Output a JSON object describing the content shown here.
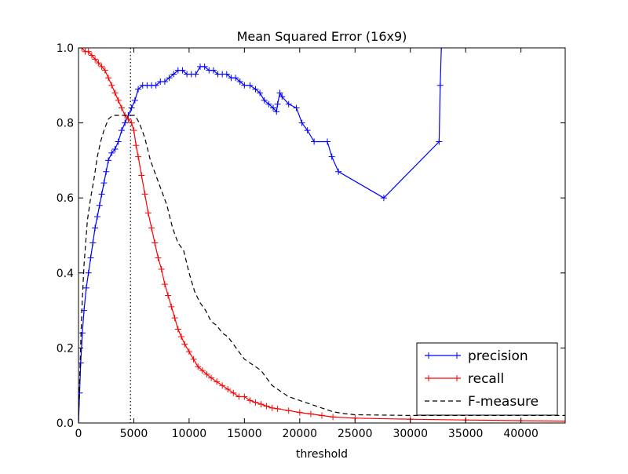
{
  "chart_data": {
    "type": "line",
    "title": "Mean Squared Error (16x9)",
    "xlabel": "threshold",
    "ylabel": "",
    "xlim": [
      0,
      44000
    ],
    "ylim": [
      0.0,
      1.0
    ],
    "xticks": [
      0,
      5000,
      10000,
      15000,
      20000,
      25000,
      30000,
      35000,
      40000
    ],
    "yticks": [
      0.0,
      0.2,
      0.4,
      0.6,
      0.8,
      1.0
    ],
    "xtick_labels": [
      "0",
      "5000",
      "10000",
      "15000",
      "20000",
      "25000",
      "30000",
      "35000",
      "40000"
    ],
    "ytick_labels": [
      "0.0",
      "0.2",
      "0.4",
      "0.6",
      "0.8",
      "1.0"
    ],
    "grid": false,
    "legend_position": "lower-right",
    "threshold_line_x": 4700,
    "series": [
      {
        "name": "precision",
        "color": "#0000ff",
        "style": "solid",
        "marker": "+",
        "x": [
          0,
          100,
          200,
          350,
          500,
          700,
          900,
          1100,
          1300,
          1500,
          1700,
          1900,
          2100,
          2300,
          2500,
          2700,
          3000,
          3300,
          3600,
          3900,
          4200,
          4500,
          4800,
          5100,
          5400,
          5800,
          6200,
          6600,
          7000,
          7400,
          7800,
          8200,
          8600,
          9000,
          9400,
          9800,
          10200,
          10600,
          11000,
          11400,
          11800,
          12200,
          12600,
          13000,
          13400,
          13800,
          14200,
          14600,
          15000,
          15500,
          16000,
          16400,
          16800,
          17200,
          17600,
          17900,
          18000,
          18200,
          18400,
          19000,
          19700,
          20200,
          20700,
          21300,
          22500,
          22900,
          23500,
          27600,
          32600,
          32700,
          32800
        ],
        "values": [
          0.0,
          0.08,
          0.16,
          0.24,
          0.3,
          0.36,
          0.4,
          0.44,
          0.48,
          0.52,
          0.55,
          0.58,
          0.61,
          0.64,
          0.67,
          0.7,
          0.72,
          0.73,
          0.75,
          0.78,
          0.8,
          0.82,
          0.84,
          0.86,
          0.89,
          0.9,
          0.9,
          0.9,
          0.9,
          0.91,
          0.91,
          0.92,
          0.93,
          0.94,
          0.94,
          0.93,
          0.93,
          0.93,
          0.95,
          0.95,
          0.94,
          0.94,
          0.93,
          0.93,
          0.93,
          0.92,
          0.92,
          0.91,
          0.9,
          0.9,
          0.89,
          0.88,
          0.86,
          0.85,
          0.84,
          0.83,
          0.85,
          0.88,
          0.87,
          0.85,
          0.84,
          0.8,
          0.78,
          0.75,
          0.75,
          0.71,
          0.67,
          0.6,
          0.75,
          0.9,
          1.0
        ]
      },
      {
        "name": "recall",
        "color": "#ff0000",
        "style": "solid",
        "marker": "+",
        "x": [
          0,
          300,
          600,
          900,
          1200,
          1500,
          1800,
          2100,
          2400,
          2700,
          3000,
          3300,
          3600,
          3900,
          4200,
          4500,
          4800,
          5000,
          5200,
          5400,
          5700,
          6000,
          6300,
          6600,
          6900,
          7200,
          7500,
          7800,
          8100,
          8400,
          8700,
          9000,
          9300,
          9600,
          10000,
          10400,
          10800,
          11200,
          11600,
          12000,
          12500,
          13000,
          13500,
          14000,
          14500,
          15000,
          15500,
          16000,
          16500,
          17000,
          17500,
          18000,
          19000,
          20000,
          21000,
          22000,
          23000,
          25000,
          30000,
          35000,
          40000,
          44000
        ],
        "values": [
          1.0,
          1.0,
          0.99,
          0.99,
          0.98,
          0.97,
          0.96,
          0.95,
          0.94,
          0.92,
          0.9,
          0.88,
          0.86,
          0.84,
          0.82,
          0.81,
          0.8,
          0.78,
          0.74,
          0.71,
          0.66,
          0.61,
          0.56,
          0.52,
          0.48,
          0.44,
          0.41,
          0.37,
          0.34,
          0.31,
          0.28,
          0.25,
          0.23,
          0.21,
          0.19,
          0.17,
          0.15,
          0.14,
          0.13,
          0.12,
          0.11,
          0.1,
          0.09,
          0.08,
          0.07,
          0.07,
          0.06,
          0.055,
          0.05,
          0.045,
          0.04,
          0.038,
          0.033,
          0.028,
          0.024,
          0.02,
          0.016,
          0.013,
          0.01,
          0.008,
          0.006,
          0.005
        ]
      },
      {
        "name": "F-measure",
        "color": "#000000",
        "style": "dashed",
        "marker": "",
        "x": [
          0,
          150,
          300,
          500,
          800,
          1100,
          1400,
          1700,
          2000,
          2300,
          2700,
          3100,
          3500,
          3900,
          4300,
          4700,
          5100,
          5500,
          6000,
          6500,
          7000,
          7500,
          8000,
          8500,
          9000,
          9500,
          10000,
          10500,
          11000,
          11500,
          12000,
          12500,
          13000,
          13500,
          14000,
          14500,
          15000,
          15500,
          16000,
          16500,
          17000,
          17500,
          18000,
          19000,
          20000,
          21000,
          22000,
          23000,
          24000,
          25000,
          30000,
          35000,
          40000,
          44000
        ],
        "values": [
          0.0,
          0.16,
          0.3,
          0.42,
          0.54,
          0.6,
          0.65,
          0.71,
          0.75,
          0.78,
          0.81,
          0.82,
          0.82,
          0.82,
          0.82,
          0.82,
          0.82,
          0.8,
          0.76,
          0.7,
          0.66,
          0.62,
          0.58,
          0.52,
          0.48,
          0.46,
          0.4,
          0.35,
          0.32,
          0.3,
          0.27,
          0.26,
          0.24,
          0.23,
          0.21,
          0.19,
          0.17,
          0.16,
          0.15,
          0.14,
          0.12,
          0.1,
          0.09,
          0.07,
          0.06,
          0.05,
          0.04,
          0.03,
          0.025,
          0.022,
          0.02,
          0.02,
          0.02,
          0.02
        ]
      }
    ]
  }
}
